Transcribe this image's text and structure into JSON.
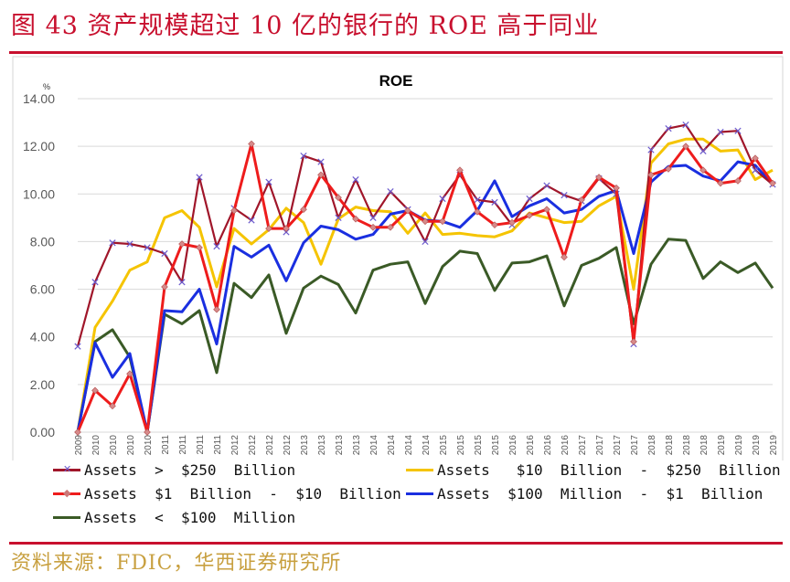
{
  "figure": {
    "title": "图 43   资产规模超过 10 亿的银行的 ROE 高于同业",
    "source": "资料来源：FDIC，华西证券研究所"
  },
  "chart_data": {
    "type": "line",
    "title": "ROE",
    "unit_label": "%",
    "xlabel": "",
    "ylabel": "",
    "ylim": [
      0,
      14
    ],
    "yticks": [
      "0.00",
      "2.00",
      "4.00",
      "6.00",
      "8.00",
      "10.00",
      "12.00",
      "14.00"
    ],
    "categories": [
      "2009",
      "2010",
      "2010",
      "2010",
      "2010",
      "2011",
      "2011",
      "2011",
      "2011",
      "2012",
      "2012",
      "2012",
      "2012",
      "2013",
      "2013",
      "2013",
      "2013",
      "2014",
      "2014",
      "2014",
      "2014",
      "2015",
      "2015",
      "2015",
      "2015",
      "2016",
      "2016",
      "2016",
      "2016",
      "2017",
      "2017",
      "2017",
      "2017",
      "2018",
      "2018",
      "2018",
      "2018",
      "2019",
      "2019",
      "2019",
      "2019"
    ],
    "legend_position": "bottom",
    "series": [
      {
        "name": "Assets  >  $250  Billion",
        "color": "#a0162a",
        "marker": "x",
        "values": [
          3.6,
          6.3,
          7.95,
          7.9,
          7.75,
          7.5,
          6.3,
          10.7,
          7.8,
          9.4,
          8.9,
          10.5,
          8.4,
          11.6,
          11.35,
          9.0,
          10.6,
          9.0,
          10.1,
          9.35,
          8.0,
          9.8,
          10.8,
          9.75,
          9.65,
          8.7,
          9.8,
          10.35,
          9.95,
          9.7,
          10.65,
          10.0,
          3.7,
          11.85,
          12.75,
          12.9,
          11.8,
          12.6,
          12.65,
          11.0,
          10.4
        ]
      },
      {
        "name": "Assets   $10  Billion  -  $250  Billion",
        "color": "#f5c400",
        "marker": "none",
        "values": [
          0.0,
          4.4,
          5.5,
          6.8,
          7.15,
          9.0,
          9.3,
          8.6,
          6.1,
          8.55,
          7.9,
          8.5,
          9.4,
          8.8,
          7.05,
          8.95,
          9.45,
          9.3,
          9.25,
          8.35,
          9.2,
          8.3,
          8.35,
          8.25,
          8.2,
          8.45,
          9.2,
          9.0,
          8.8,
          8.85,
          9.5,
          9.9,
          6.0,
          11.3,
          12.1,
          12.3,
          12.3,
          11.8,
          11.85,
          10.6,
          11.0
        ]
      },
      {
        "name": "Assets  $1  Billion  -  $10  Billion",
        "color": "#ee1c1c",
        "marker": "diamond",
        "values": [
          0.0,
          1.75,
          1.1,
          2.45,
          0.0,
          6.1,
          7.9,
          7.75,
          5.15,
          9.3,
          12.1,
          8.55,
          8.55,
          9.35,
          10.8,
          9.85,
          8.95,
          8.6,
          8.6,
          9.3,
          8.85,
          8.85,
          11.0,
          9.25,
          8.7,
          8.8,
          9.1,
          9.35,
          7.35,
          9.75,
          10.7,
          10.25,
          3.8,
          10.8,
          11.05,
          12.0,
          11.0,
          10.45,
          10.55,
          11.5,
          10.45
        ]
      },
      {
        "name": "Assets  $100  Million  -  $1  Billion",
        "color": "#1a2fe0",
        "marker": "none",
        "values": [
          0.0,
          3.75,
          2.3,
          3.3,
          0.0,
          5.1,
          5.05,
          6.0,
          3.7,
          7.8,
          7.35,
          7.85,
          6.35,
          7.95,
          8.65,
          8.5,
          8.1,
          8.3,
          9.15,
          9.3,
          8.9,
          8.85,
          8.6,
          9.3,
          10.55,
          9.05,
          9.5,
          9.8,
          9.2,
          9.35,
          9.9,
          10.15,
          7.5,
          10.5,
          11.15,
          11.2,
          10.75,
          10.55,
          11.35,
          11.2,
          10.4
        ]
      },
      {
        "name": "Assets  <  $100  Million",
        "color": "#3a5a26",
        "marker": "none",
        "values": [
          0.0,
          3.8,
          4.3,
          3.15,
          0.0,
          4.95,
          4.55,
          5.1,
          2.5,
          6.25,
          5.65,
          6.6,
          4.15,
          6.05,
          6.55,
          6.2,
          5.0,
          6.8,
          7.05,
          7.15,
          5.4,
          6.95,
          7.6,
          7.5,
          5.95,
          7.1,
          7.15,
          7.4,
          5.3,
          7.0,
          7.3,
          7.75,
          4.55,
          7.05,
          8.1,
          8.05,
          6.45,
          7.15,
          6.7,
          7.1,
          6.05
        ]
      }
    ]
  }
}
